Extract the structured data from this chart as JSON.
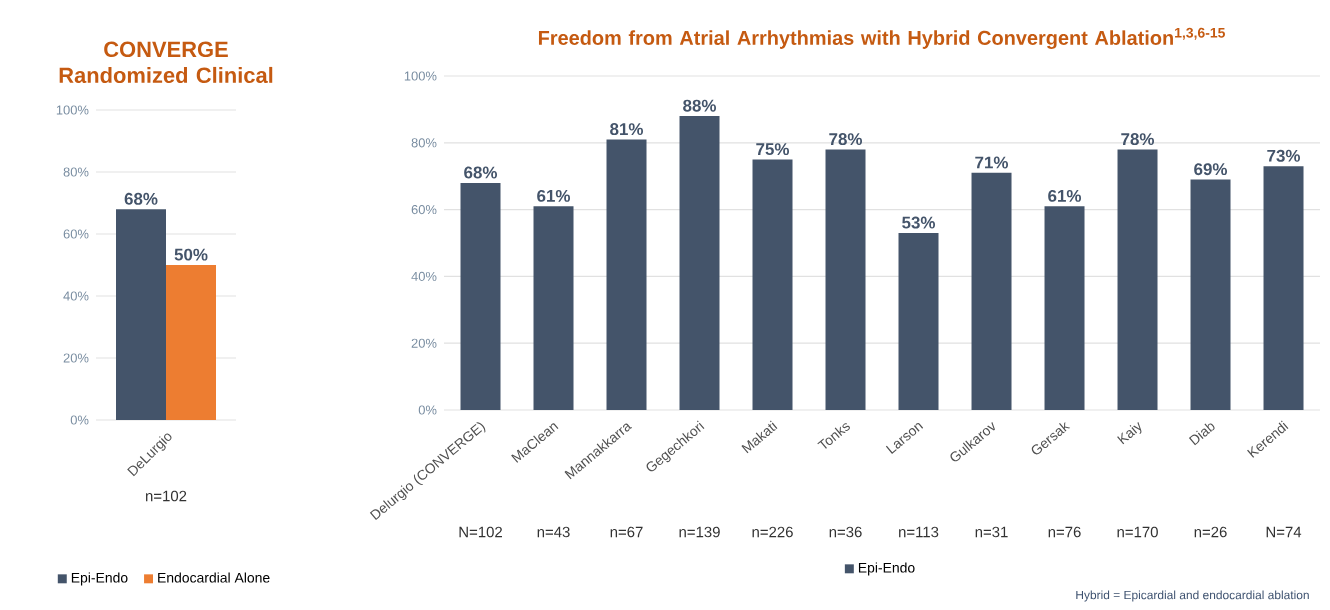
{
  "chart_data": [
    {
      "type": "bar",
      "title": "CONVERGE Randomized Clinical",
      "categories": [
        "DeLurgio"
      ],
      "series": [
        {
          "name": "Epi-Endo",
          "color": "#44546a",
          "values": [
            68
          ],
          "value_labels": [
            "68%"
          ]
        },
        {
          "name": "Endocardial Alone",
          "color": "#ed7d31",
          "values": [
            50
          ],
          "value_labels": [
            "50%"
          ]
        }
      ],
      "ylim": [
        0,
        100
      ],
      "yticks": [
        {
          "value": 0,
          "label": "0%"
        },
        {
          "value": 20,
          "label": "20%"
        },
        {
          "value": 40,
          "label": "40%"
        },
        {
          "value": 60,
          "label": "60%"
        },
        {
          "value": 80,
          "label": "80%"
        },
        {
          "value": 100,
          "label": "100%"
        }
      ],
      "grid": "y",
      "legend": "bottom",
      "annotations": [
        "n=102"
      ]
    },
    {
      "type": "bar",
      "title": "Freedom from Atrial Arrhythmias with Hybrid Convergent Ablation$^{1,3,6-15}$",
      "categories": [
        "Delurgio (CONVERGE)",
        "MaClean",
        "Mannakkarra",
        "Gegechkori",
        "Makati",
        "Tonks",
        "Larson",
        "Gulkarov",
        "Gersak",
        "Kaiy",
        "Diab",
        "Kerendi"
      ],
      "series": [
        {
          "name": "Epi-Endo",
          "color": "#44546a",
          "values": [
            68,
            61,
            81,
            88,
            75,
            78,
            53,
            71,
            61,
            78,
            69,
            73
          ],
          "value_labels": [
            "68%",
            "61%",
            "81%",
            "88%",
            "75%",
            "78%",
            "53%",
            "71%",
            "61%",
            "78%",
            "69%",
            "73%"
          ]
        }
      ],
      "ylim": [
        0,
        100
      ],
      "yticks": [
        {
          "value": 0,
          "label": "0%"
        },
        {
          "value": 20,
          "label": "20%"
        },
        {
          "value": 40,
          "label": "40%"
        },
        {
          "value": 60,
          "label": "60%"
        },
        {
          "value": 80,
          "label": "80%"
        },
        {
          "value": 100,
          "label": "100%"
        }
      ],
      "grid": "y",
      "legend": "bottom",
      "annotations": [
        "N=102",
        "n=43",
        "n=67",
        "n=139",
        "n=226",
        "n=36",
        "n=113",
        "n=31",
        "n=76",
        "n=170",
        "n=26",
        "N=74",
        "Hybrid = Epicardial and endocardial ablation"
      ]
    }
  ]
}
